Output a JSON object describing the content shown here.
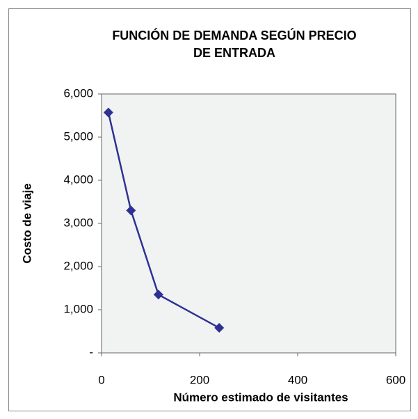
{
  "chart_data": {
    "type": "line",
    "title": [
      "FUNCIÓN DE DEMANDA SEGÚN PRECIO",
      "DE ENTRADA"
    ],
    "x_label": "Número estimado de visitantes",
    "y_label": "Costo de viaje",
    "x": [
      14,
      60,
      116,
      240
    ],
    "series": [
      {
        "name": "Costo de viaje",
        "color": "#2e3192",
        "values": [
          5570,
          3300,
          1350,
          580
        ]
      }
    ],
    "xlim": [
      0,
      600
    ],
    "xticks": [
      0,
      200,
      400,
      600
    ],
    "ylim": [
      0,
      6000
    ],
    "yticks": [
      {
        "value": 0,
        "label": "-"
      },
      {
        "value": 1000,
        "label": "1,000"
      },
      {
        "value": 2000,
        "label": "2,000"
      },
      {
        "value": 3000,
        "label": "3,000"
      },
      {
        "value": 4000,
        "label": "4,000"
      },
      {
        "value": 5000,
        "label": "5,000"
      },
      {
        "value": 6000,
        "label": "6,000"
      }
    ],
    "grid": false
  }
}
